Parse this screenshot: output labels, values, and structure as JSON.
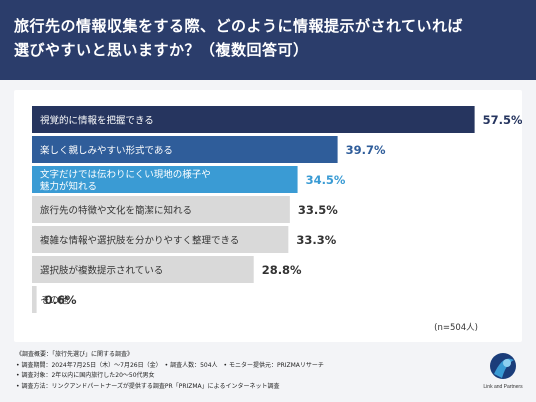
{
  "header": {
    "title_line1": "旅行先の情報収集をする際、どのように情報提示がされていれば",
    "title_line2": "選びやすいと思いますか？（複数回答可）"
  },
  "chart_data": {
    "type": "bar",
    "orientation": "horizontal",
    "categories": [
      [
        "視覚的に情報を把握できる"
      ],
      [
        "楽しく親しみやすい形式である"
      ],
      [
        "文字だけでは伝わりにくい現地の様子や",
        "魅力が知れる"
      ],
      [
        "旅行先の特徴や文化を簡潔に知れる"
      ],
      [
        "複雑な情報や選択肢を分かりやすく整理できる"
      ],
      [
        "選択肢が複数提示されている"
      ],
      [
        "その他"
      ]
    ],
    "values": [
      57.5,
      39.7,
      34.5,
      33.5,
      33.3,
      28.8,
      0.6
    ],
    "value_labels": [
      "57.5%",
      "39.7%",
      "34.5%",
      "33.5%",
      "33.3%",
      "28.8%",
      "0.6%"
    ],
    "unit": "%",
    "xlim": [
      0,
      60
    ],
    "bar_colors": [
      "#26355f",
      "#2f5d9a",
      "#3a9bd4",
      "#d9d9d9",
      "#d9d9d9",
      "#d9d9d9",
      "#d9d9d9"
    ],
    "label_colors": [
      "#ffffff",
      "#ffffff",
      "#ffffff",
      "#333333",
      "#333333",
      "#333333",
      "#333333"
    ],
    "value_colors": [
      "#26355f",
      "#2f5d9a",
      "#3a9bd4",
      "#333333",
      "#333333",
      "#333333",
      "#333333"
    ],
    "note": "(n=504人)"
  },
  "footer": {
    "lines": [
      "《調査概要：「旅行先選び」に関する調査》",
      "• 調査期間：2024年7月25日（木）〜7月26日（金）　• 調査人数：504人　• モニター提供元：PRIZMAリサーチ",
      "• 調査対象：2年以内に国内旅行した20〜50代男女",
      "• 調査方法：リンクアンドパートナーズが提供する調査PR「PRIZMA」によるインターネット調査"
    ]
  },
  "logo": {
    "text": "Link and Partners",
    "colors": [
      "#1b3d7a",
      "#3a9bd4",
      "#8ccff0"
    ]
  }
}
